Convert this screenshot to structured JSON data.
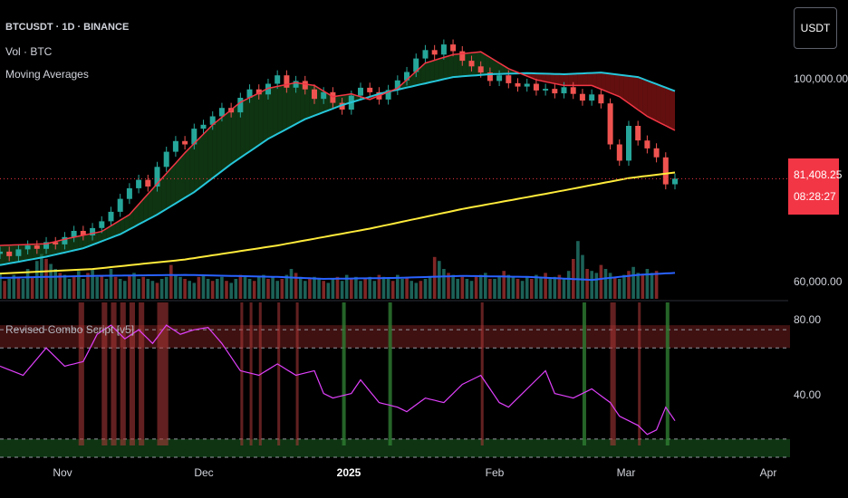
{
  "header": {
    "symbol_line": "BTCUSDT · 1D · BINANCE",
    "volume_label": "Vol · BTC",
    "ma_label": "Moving Averages",
    "currency": "USDT"
  },
  "oscillator_label": "Revised Combo Script [v5]",
  "last_price": {
    "value": "81,408.25",
    "countdown": "08:28:27"
  },
  "colors": {
    "up": "#26a69a",
    "down": "#ef5350",
    "ema_fast": "#f23645",
    "ema_mid": "#26c6da",
    "sma_slow": "#ffeb3b",
    "vol_ma": "#2962ff",
    "osc": "#e040fb",
    "bull_fill": "#1b5e20",
    "bear_fill": "#b71c1c"
  },
  "chart_data": [
    {
      "type": "candlestick",
      "price_axis": {
        "ticks": [
          "100,000.00",
          "60,000.00"
        ]
      },
      "time_axis": {
        "ticks": [
          "Nov",
          "Dec",
          "2025",
          "Feb",
          "Mar",
          "Apr"
        ]
      },
      "range": {
        "start": "2024-10-17",
        "days": 146,
        "ylim": [
          60000,
          110000
        ]
      },
      "series": [
        {
          "name": "EMA fast",
          "anchors": [
            [
              0,
              69500
            ],
            [
              10,
              69800
            ],
            [
              15,
              70800
            ],
            [
              22,
              72000
            ],
            [
              28,
              75000
            ],
            [
              34,
              80500
            ],
            [
              40,
              86000
            ],
            [
              46,
              91000
            ],
            [
              52,
              95000
            ],
            [
              58,
              97500
            ],
            [
              64,
              98500
            ],
            [
              68,
              98000
            ],
            [
              72,
              96000
            ],
            [
              76,
              96500
            ],
            [
              80,
              95500
            ],
            [
              86,
              97500
            ],
            [
              92,
              102000
            ],
            [
              98,
              103500
            ],
            [
              104,
              104000
            ],
            [
              110,
              101000
            ],
            [
              116,
              99000
            ],
            [
              122,
              98000
            ],
            [
              128,
              98000
            ],
            [
              134,
              96000
            ],
            [
              140,
              92500
            ],
            [
              146,
              90000
            ]
          ]
        },
        {
          "name": "EMA mid",
          "anchors": [
            [
              0,
              66000
            ],
            [
              10,
              67500
            ],
            [
              18,
              69000
            ],
            [
              26,
              71500
            ],
            [
              34,
              75000
            ],
            [
              42,
              79000
            ],
            [
              50,
              84000
            ],
            [
              58,
              88500
            ],
            [
              66,
              92000
            ],
            [
              74,
              94500
            ],
            [
              82,
              96500
            ],
            [
              90,
              98000
            ],
            [
              98,
              99500
            ],
            [
              106,
              100000
            ],
            [
              114,
              100200
            ],
            [
              122,
              100000
            ],
            [
              130,
              100300
            ],
            [
              138,
              99500
            ],
            [
              146,
              97000
            ]
          ]
        },
        {
          "name": "SMA slow",
          "anchors": [
            [
              0,
              64500
            ],
            [
              20,
              65300
            ],
            [
              40,
              67000
            ],
            [
              60,
              69500
            ],
            [
              80,
              72500
            ],
            [
              100,
              76000
            ],
            [
              120,
              79000
            ],
            [
              136,
              81500
            ],
            [
              146,
              82500
            ]
          ]
        }
      ],
      "candles": [
        [
          0,
          68000,
          68400
        ],
        [
          2,
          68400,
          67600
        ],
        [
          4,
          67600,
          68800
        ],
        [
          6,
          68800,
          69500
        ],
        [
          8,
          69500,
          68900
        ],
        [
          10,
          68900,
          70100
        ],
        [
          12,
          70100,
          69700
        ],
        [
          14,
          69700,
          71000
        ],
        [
          16,
          71000,
          72100
        ],
        [
          18,
          72100,
          71300
        ],
        [
          20,
          71300,
          72600
        ],
        [
          22,
          72600,
          73800
        ],
        [
          24,
          73800,
          75500
        ],
        [
          26,
          75500,
          77800
        ],
        [
          28,
          77800,
          79700
        ],
        [
          30,
          79700,
          81200
        ],
        [
          32,
          81200,
          80000
        ],
        [
          34,
          80000,
          83500
        ],
        [
          36,
          83500,
          86200
        ],
        [
          38,
          86200,
          88100
        ],
        [
          40,
          88100,
          87500
        ],
        [
          42,
          87500,
          90300
        ],
        [
          44,
          90300,
          91000
        ],
        [
          46,
          91000,
          92500
        ],
        [
          48,
          92500,
          94000
        ],
        [
          50,
          94000,
          93200
        ],
        [
          52,
          93200,
          95800
        ],
        [
          54,
          95800,
          97300
        ],
        [
          56,
          97300,
          96400
        ],
        [
          58,
          96400,
          98300
        ],
        [
          60,
          98300,
          99800
        ],
        [
          62,
          99800,
          97600
        ],
        [
          64,
          97600,
          98800
        ],
        [
          66,
          98800,
          97300
        ],
        [
          68,
          97300,
          95600
        ],
        [
          70,
          95600,
          96800
        ],
        [
          72,
          96800,
          94900
        ],
        [
          74,
          94900,
          93700
        ],
        [
          76,
          93700,
          96200
        ],
        [
          78,
          96200,
          97600
        ],
        [
          80,
          97600,
          96800
        ],
        [
          82,
          96800,
          95500
        ],
        [
          84,
          95500,
          97200
        ],
        [
          86,
          97200,
          98900
        ],
        [
          88,
          98900,
          100400
        ],
        [
          90,
          100400,
          102800
        ],
        [
          92,
          102800,
          104300
        ],
        [
          94,
          104300,
          103500
        ],
        [
          96,
          103500,
          105300
        ],
        [
          98,
          105300,
          104100
        ],
        [
          100,
          104100,
          102400
        ],
        [
          102,
          102400,
          101400
        ],
        [
          104,
          101400,
          100300
        ],
        [
          106,
          100300,
          98800
        ],
        [
          108,
          98800,
          99800
        ],
        [
          110,
          99800,
          98400
        ],
        [
          112,
          98400,
          97800
        ],
        [
          114,
          97800,
          98300
        ],
        [
          116,
          98300,
          97100
        ],
        [
          118,
          97100,
          97400
        ],
        [
          120,
          97400,
          96600
        ],
        [
          122,
          96600,
          97700
        ],
        [
          124,
          97700,
          96500
        ],
        [
          126,
          96500,
          95300
        ],
        [
          128,
          95300,
          96400
        ],
        [
          130,
          96400,
          94800
        ],
        [
          132,
          94800,
          87500
        ],
        [
          134,
          87500,
          84600
        ],
        [
          136,
          84600,
          90800
        ],
        [
          138,
          90800,
          88200
        ],
        [
          140,
          88200,
          86800
        ],
        [
          142,
          86800,
          85200
        ],
        [
          144,
          85200,
          80400
        ],
        [
          146,
          80400,
          81400
        ]
      ]
    },
    {
      "type": "bar",
      "name": "Volume",
      "values": [
        26,
        18,
        20,
        24,
        22,
        20,
        30,
        22,
        38,
        45,
        40,
        35,
        30,
        26,
        24,
        20,
        22,
        28,
        20,
        26,
        30,
        22,
        24,
        20,
        30,
        22,
        20,
        18,
        24,
        26,
        20,
        22,
        20,
        18,
        16,
        20,
        22,
        34,
        24,
        22,
        20,
        18,
        16,
        22,
        24,
        20,
        18,
        20,
        22,
        18,
        16,
        20,
        24,
        22,
        20,
        18,
        22,
        24,
        20,
        22,
        18,
        20,
        24,
        30,
        26,
        22,
        18,
        20,
        22,
        20,
        18,
        16,
        20,
        22,
        18,
        24,
        20,
        22,
        18,
        20,
        22,
        18,
        24,
        22,
        20,
        18,
        24,
        20,
        22,
        18,
        16,
        18,
        20,
        22,
        42,
        38,
        30,
        26,
        24,
        20,
        22,
        20,
        18,
        22,
        24,
        26,
        20,
        20,
        22,
        28,
        24,
        22,
        20,
        18,
        22,
        20,
        24,
        22,
        26,
        20,
        22,
        24,
        20,
        28,
        40,
        58,
        44,
        30,
        28,
        26,
        34,
        30,
        26,
        22,
        20,
        24,
        28,
        32,
        26,
        24,
        30,
        26,
        28
      ],
      "ma_anchors": [
        [
          0,
          21
        ],
        [
          20,
          23
        ],
        [
          40,
          24
        ],
        [
          60,
          22
        ],
        [
          70,
          20
        ],
        [
          86,
          21
        ],
        [
          100,
          23
        ],
        [
          114,
          22
        ],
        [
          128,
          19
        ],
        [
          138,
          24
        ],
        [
          146,
          26
        ]
      ]
    },
    {
      "type": "line",
      "name": "Oscillator",
      "ylim": [
        20,
        90
      ],
      "levels": [
        70,
        30
      ],
      "axis_ticks": [
        "80.00",
        "40.00"
      ],
      "anchors": [
        [
          0,
          62
        ],
        [
          5,
          58
        ],
        [
          10,
          70
        ],
        [
          14,
          62
        ],
        [
          18,
          64
        ],
        [
          21,
          76
        ],
        [
          24,
          80
        ],
        [
          27,
          74
        ],
        [
          30,
          78
        ],
        [
          33,
          72
        ],
        [
          36,
          80
        ],
        [
          39,
          76
        ],
        [
          42,
          78
        ],
        [
          45,
          79
        ],
        [
          48,
          72
        ],
        [
          52,
          60
        ],
        [
          56,
          58
        ],
        [
          60,
          63
        ],
        [
          64,
          58
        ],
        [
          68,
          60
        ],
        [
          70,
          50
        ],
        [
          72,
          48
        ],
        [
          76,
          50
        ],
        [
          78,
          56
        ],
        [
          82,
          46
        ],
        [
          86,
          44
        ],
        [
          88,
          42
        ],
        [
          92,
          48
        ],
        [
          96,
          46
        ],
        [
          100,
          54
        ],
        [
          104,
          58
        ],
        [
          108,
          46
        ],
        [
          110,
          44
        ],
        [
          114,
          52
        ],
        [
          118,
          60
        ],
        [
          120,
          50
        ],
        [
          124,
          48
        ],
        [
          128,
          52
        ],
        [
          132,
          46
        ],
        [
          134,
          40
        ],
        [
          136,
          38
        ],
        [
          138,
          36
        ],
        [
          140,
          32
        ],
        [
          142,
          34
        ],
        [
          144,
          44
        ],
        [
          146,
          38
        ]
      ],
      "bear_bands": [
        [
          17,
          19
        ],
        [
          22,
          24
        ],
        [
          24,
          26
        ],
        [
          26,
          28
        ],
        [
          28,
          30
        ],
        [
          30,
          32
        ],
        [
          34,
          38
        ],
        [
          52,
          53
        ],
        [
          54,
          55
        ],
        [
          56,
          57
        ],
        [
          60,
          61
        ],
        [
          64,
          65
        ],
        [
          104,
          105
        ],
        [
          132,
          134
        ],
        [
          138,
          139
        ]
      ],
      "bull_bands": [
        [
          74,
          75
        ],
        [
          84,
          85
        ],
        [
          126,
          127
        ],
        [
          144,
          145
        ]
      ]
    }
  ]
}
